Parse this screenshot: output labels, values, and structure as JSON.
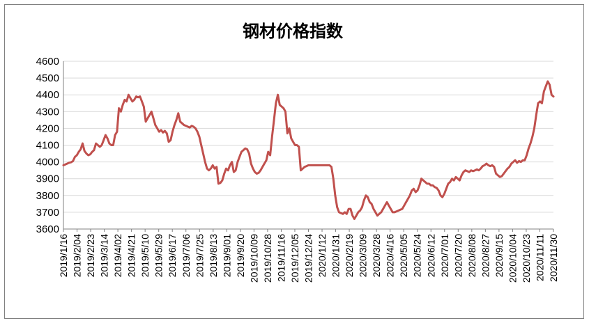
{
  "chart_data": {
    "type": "line",
    "title": "钢材价格指数",
    "xlabel": "",
    "ylabel": "",
    "ylim": [
      3600,
      4600
    ],
    "yticks": [
      3600,
      3700,
      3800,
      3900,
      4000,
      4100,
      4200,
      4300,
      4400,
      4500,
      4600
    ],
    "grid": "horizontal",
    "legend": "none",
    "line_color": "#C0504D",
    "x_ticklabels": [
      "2019/1/16",
      "2019/2/04",
      "2019/2/23",
      "2019/3/14",
      "2019/4/02",
      "2019/4/21",
      "2019/5/10",
      "2019/5/29",
      "2019/6/17",
      "2019/7/06",
      "2019/7/25",
      "2019/8/13",
      "2019/9/01",
      "2019/9/20",
      "2019/10/09",
      "2019/10/28",
      "2019/11/16",
      "2019/12/05",
      "2019/12/24",
      "2020/1/12",
      "2020/1/31",
      "2020/2/19",
      "2020/3/09",
      "2020/3/28",
      "2020/4/16",
      "2020/5/05",
      "2020/5/24",
      "2020/6/12",
      "2020/7/01",
      "2020/7/20",
      "2020/8/08",
      "2020/8/27",
      "2020/9/15",
      "2020/10/04",
      "2020/10/23",
      "2020/11/11",
      "2020/11/30"
    ],
    "series": [
      {
        "values": [
          3980,
          3985,
          3990,
          3995,
          3998,
          4005,
          4030,
          4040,
          4060,
          4075,
          4110,
          4065,
          4050,
          4040,
          4045,
          4060,
          4070,
          4110,
          4100,
          4090,
          4100,
          4130,
          4160,
          4140,
          4110,
          4100,
          4100,
          4160,
          4180,
          4320,
          4300,
          4340,
          4370,
          4360,
          4400,
          4380,
          4360,
          4370,
          4390,
          4385,
          4390,
          4360,
          4330,
          4240,
          4260,
          4280,
          4300,
          4260,
          4220,
          4200,
          4180,
          4190,
          4175,
          4185,
          4170,
          4120,
          4130,
          4180,
          4220,
          4250,
          4290,
          4240,
          4230,
          4220,
          4215,
          4210,
          4205,
          4215,
          4210,
          4200,
          4180,
          4150,
          4100,
          4050,
          4000,
          3960,
          3950,
          3960,
          3980,
          3960,
          3970,
          3870,
          3875,
          3890,
          3930,
          3960,
          3950,
          3980,
          4000,
          3940,
          3950,
          4000,
          4030,
          4060,
          4070,
          4080,
          4075,
          4050,
          3990,
          3960,
          3940,
          3930,
          3935,
          3950,
          3970,
          3990,
          4010,
          4060,
          4040,
          4150,
          4250,
          4350,
          4400,
          4340,
          4330,
          4320,
          4300,
          4170,
          4200,
          4140,
          4120,
          4100,
          4100,
          4090,
          3950,
          3960,
          3970,
          3975,
          3980,
          3980,
          3980,
          3980,
          3980,
          3980,
          3980,
          3980,
          3980,
          3980,
          3980,
          3980,
          3970,
          3900,
          3800,
          3730,
          3700,
          3695,
          3690,
          3700,
          3690,
          3720,
          3720,
          3680,
          3660,
          3680,
          3700,
          3710,
          3730,
          3770,
          3800,
          3790,
          3760,
          3750,
          3720,
          3700,
          3680,
          3690,
          3700,
          3720,
          3740,
          3760,
          3740,
          3720,
          3700,
          3700,
          3705,
          3710,
          3715,
          3720,
          3740,
          3760,
          3780,
          3800,
          3830,
          3840,
          3820,
          3830,
          3860,
          3900,
          3890,
          3880,
          3870,
          3870,
          3860,
          3860,
          3850,
          3845,
          3830,
          3800,
          3790,
          3810,
          3840,
          3870,
          3880,
          3900,
          3890,
          3910,
          3900,
          3890,
          3920,
          3940,
          3950,
          3945,
          3940,
          3950,
          3945,
          3950,
          3955,
          3950,
          3960,
          3975,
          3980,
          3990,
          3980,
          3975,
          3980,
          3970,
          3930,
          3920,
          3910,
          3915,
          3930,
          3945,
          3960,
          3970,
          3990,
          4000,
          4010,
          3995,
          4005,
          4000,
          4010,
          4010,
          4040,
          4080,
          4110,
          4150,
          4200,
          4280,
          4350,
          4360,
          4350,
          4420,
          4450,
          4480,
          4460,
          4400,
          4390
        ]
      }
    ]
  }
}
